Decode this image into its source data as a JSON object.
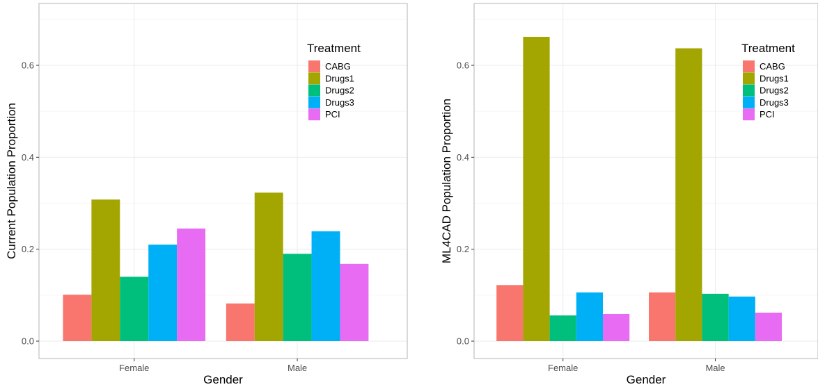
{
  "colors": {
    "CABG": "#F8766D",
    "Drugs1": "#A3A500",
    "Drugs2": "#00BF7D",
    "Drugs3": "#00B0F6",
    "PCI": "#E76BF3",
    "grid_major": "#ebebeb",
    "grid_minor": "#f5f5f5",
    "panel_border": "#b3b3b3"
  },
  "chart_data": [
    {
      "type": "bar",
      "categories": [
        "Female",
        "Male"
      ],
      "series": [
        {
          "name": "CABG",
          "values": [
            0.101,
            0.082
          ]
        },
        {
          "name": "Drugs1",
          "values": [
            0.308,
            0.323
          ]
        },
        {
          "name": "Drugs2",
          "values": [
            0.14,
            0.19
          ]
        },
        {
          "name": "Drugs3",
          "values": [
            0.21,
            0.239
          ]
        },
        {
          "name": "PCI",
          "values": [
            0.245,
            0.168
          ]
        }
      ],
      "xlabel": "Gender",
      "ylabel": "Current Population Proportion",
      "ylim": [
        0,
        0.7
      ],
      "yticks": [
        "0.0",
        "0.2",
        "0.4",
        "0.6"
      ],
      "ytick_values": [
        0,
        0.2,
        0.4,
        0.6
      ],
      "legend_title": "Treatment",
      "legend_position": "top-right",
      "grid": true
    },
    {
      "type": "bar",
      "categories": [
        "Female",
        "Male"
      ],
      "series": [
        {
          "name": "CABG",
          "values": [
            0.122,
            0.106
          ]
        },
        {
          "name": "Drugs1",
          "values": [
            0.662,
            0.637
          ]
        },
        {
          "name": "Drugs2",
          "values": [
            0.056,
            0.103
          ]
        },
        {
          "name": "Drugs3",
          "values": [
            0.106,
            0.097
          ]
        },
        {
          "name": "PCI",
          "values": [
            0.059,
            0.062
          ]
        }
      ],
      "xlabel": "Gender",
      "ylabel": "ML4CAD Population Proportion",
      "ylim": [
        0,
        0.7
      ],
      "yticks": [
        "0.0",
        "0.2",
        "0.4",
        "0.6"
      ],
      "ytick_values": [
        0,
        0.2,
        0.4,
        0.6
      ],
      "legend_title": "Treatment",
      "legend_position": "top-right",
      "grid": true
    }
  ]
}
